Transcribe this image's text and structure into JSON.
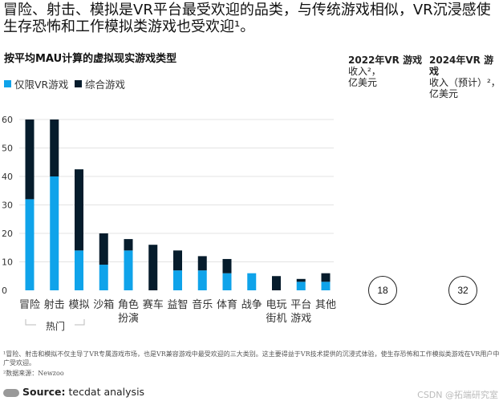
{
  "headline": "冒险、射击、模拟是VR平台最受欢迎的品类，与传统游戏相似，VR沉浸感使生存恐怖和工作模拟类游戏也受欢迎¹。",
  "subtitle": "按平均MAU计算的虚拟现实游戏类型",
  "legend": [
    {
      "label": "仅限VR游戏",
      "color": "#0fa3ea"
    },
    {
      "label": "综合游戏",
      "color": "#061c2c"
    }
  ],
  "columns": {
    "rev2022": {
      "line1": "2022年VR 游戏",
      "line2": "收入²，",
      "line3": "亿美元",
      "value": "18"
    },
    "rev2024": {
      "line1": "2024年VR 游戏",
      "line2": "收入（预计）²，",
      "line3": "亿美元",
      "value": "32"
    }
  },
  "chart_data": {
    "type": "bar",
    "stacked": true,
    "categories": [
      "冒险",
      "射击",
      "模拟",
      "沙箱",
      "角色\n扮演",
      "赛车",
      "益智",
      "音乐",
      "体育",
      "战争",
      "电玩\n街机",
      "平台\n游戏",
      "其他"
    ],
    "series": [
      {
        "name": "仅限VR游戏",
        "color": "#0fa3ea",
        "values": [
          32,
          40,
          14,
          9,
          14,
          0,
          7,
          7,
          6,
          6,
          0,
          3,
          3
        ]
      },
      {
        "name": "综合游戏",
        "color": "#061c2c",
        "values": [
          28,
          20,
          28.5,
          11,
          4,
          16,
          7,
          5,
          5,
          0,
          5,
          1,
          3
        ]
      }
    ],
    "ylim": [
      0,
      60
    ],
    "yticks": [
      0,
      10,
      20,
      30,
      40,
      50,
      60
    ],
    "grid": true,
    "group_label": "热门",
    "legend_position": "top-left"
  },
  "footnotes": {
    "note1": "¹冒险、射击和模拟不仅主导了VR专属游戏市场，也是VR兼容游戏中最受欢迎的三大类别。这主要得益于VR技术提供的沉浸式体验，使生存恐怖和工作模拟类游戏在VR用户中广受欢迎。",
    "note2": "²数据来源：Newzoo",
    "source_label": "Source:",
    "source_text": " tecdat analysis",
    "logo_text": "tecdat",
    "csdn": "CSDN @拓端研究室"
  }
}
